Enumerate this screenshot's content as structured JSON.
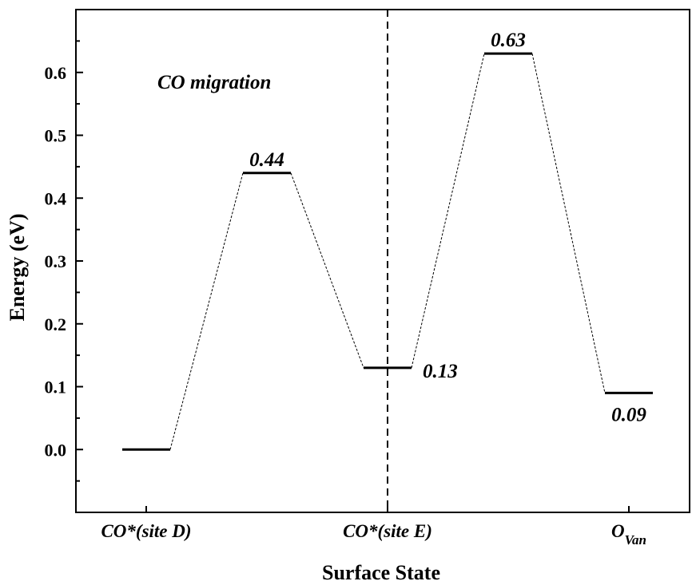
{
  "chart_data": {
    "type": "line",
    "title": "",
    "annotation": "CO migration",
    "xlabel": "Surface State",
    "ylabel": "Energy (eV)",
    "ylim": [
      -0.1,
      0.7
    ],
    "yticks": [
      "0.0",
      "0.1",
      "0.2",
      "0.3",
      "0.4",
      "0.5",
      "0.6"
    ],
    "categories": [
      {
        "main": "CO*(site D)",
        "sub": ""
      },
      {
        "main": "CO*(site E)",
        "sub": ""
      },
      {
        "main": "O",
        "sub": "Van"
      }
    ],
    "levels": [
      {
        "x": 0,
        "value": 0.0,
        "label": ""
      },
      {
        "x": 0.5,
        "value": 0.44,
        "label": "0.44"
      },
      {
        "x": 1,
        "value": 0.13,
        "label": "0.13"
      },
      {
        "x": 1.5,
        "value": 0.63,
        "label": "0.63"
      },
      {
        "x": 2,
        "value": 0.09,
        "label": "0.09"
      }
    ],
    "divider_x": 1,
    "grid": false,
    "colors": {
      "line": "#000000",
      "background": "#ffffff"
    }
  }
}
